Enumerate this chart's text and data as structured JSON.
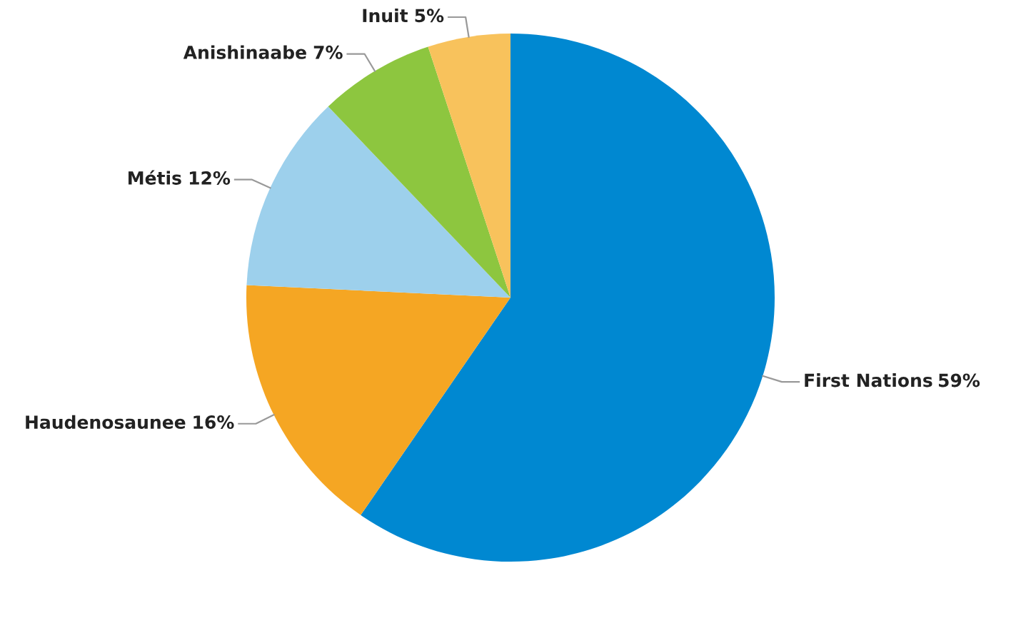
{
  "chart_data": {
    "type": "pie",
    "categories": [
      "First Nations",
      "Haudenosaunee",
      "Métis",
      "Anishinaabe",
      "Inuit"
    ],
    "values": [
      59,
      16,
      12,
      7,
      5
    ],
    "colors": [
      "#0088d1",
      "#f5a623",
      "#9dd0ec",
      "#8dc63f",
      "#f8c25c"
    ],
    "value_labels": [
      "59%",
      "16%",
      "12%",
      "7%",
      "5%"
    ],
    "legend": false
  }
}
